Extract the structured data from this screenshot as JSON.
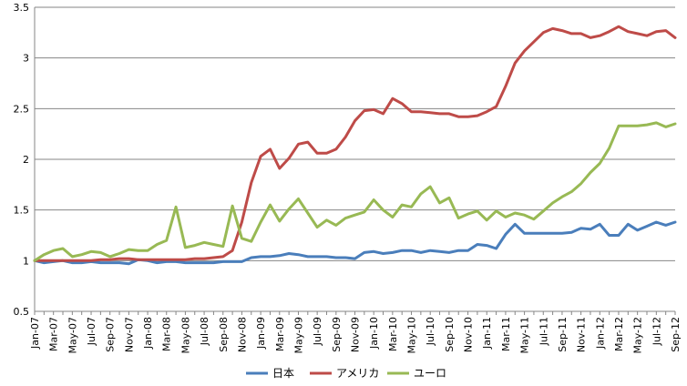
{
  "chart_data": {
    "type": "line",
    "title": "",
    "xlabel": "",
    "ylabel": "",
    "ylim": [
      0.5,
      3.5
    ],
    "y_ticks": [
      "0.5",
      "1",
      "1.5",
      "2",
      "2.5",
      "3",
      "3.5"
    ],
    "grid": "horizontal",
    "legend_position": "bottom",
    "x": [
      "Jan-07",
      "Feb-07",
      "Mar-07",
      "Apr-07",
      "May-07",
      "Jun-07",
      "Jul-07",
      "Aug-07",
      "Sep-07",
      "Oct-07",
      "Nov-07",
      "Dec-07",
      "Jan-08",
      "Feb-08",
      "Mar-08",
      "Apr-08",
      "May-08",
      "Jun-08",
      "Jul-08",
      "Aug-08",
      "Sep-08",
      "Oct-08",
      "Nov-08",
      "Dec-08",
      "Jan-09",
      "Feb-09",
      "Mar-09",
      "Apr-09",
      "May-09",
      "Jun-09",
      "Jul-09",
      "Aug-09",
      "Sep-09",
      "Oct-09",
      "Nov-09",
      "Dec-09",
      "Jan-10",
      "Feb-10",
      "Mar-10",
      "Apr-10",
      "May-10",
      "Jun-10",
      "Jul-10",
      "Aug-10",
      "Sep-10",
      "Oct-10",
      "Nov-10",
      "Dec-10",
      "Jan-11",
      "Feb-11",
      "Mar-11",
      "Apr-11",
      "May-11",
      "Jun-11",
      "Jul-11",
      "Aug-11",
      "Sep-11",
      "Oct-11",
      "Nov-11",
      "Dec-11",
      "Jan-12",
      "Feb-12",
      "Mar-12",
      "Apr-12",
      "May-12",
      "Jun-12",
      "Jul-12",
      "Aug-12",
      "Sep-12"
    ],
    "x_tick_labels": [
      "Jan-07",
      "Mar-07",
      "May-07",
      "Jul-07",
      "Sep-07",
      "Nov-07",
      "Jan-08",
      "Mar-08",
      "May-08",
      "Jul-08",
      "Sep-08",
      "Nov-08",
      "Jan-09",
      "Mar-09",
      "May-09",
      "Jul-09",
      "Sep-09",
      "Nov-09",
      "Jan-10",
      "Mar-10",
      "May-10",
      "Jul-10",
      "Sep-10",
      "Nov-10",
      "Jan-11",
      "Mar-11",
      "May-11",
      "Jul-11",
      "Sep-11",
      "Nov-11",
      "Jan-12",
      "Mar-12",
      "May-12",
      "Jul-12",
      "Sep-12"
    ],
    "series": [
      {
        "name": "日本",
        "color": "#4a7ebb",
        "values": [
          1.0,
          0.98,
          0.99,
          1.0,
          0.98,
          0.98,
          0.99,
          0.98,
          0.98,
          0.98,
          0.97,
          1.01,
          1.0,
          0.98,
          0.99,
          0.99,
          0.98,
          0.98,
          0.98,
          0.98,
          0.99,
          0.99,
          0.99,
          1.03,
          1.04,
          1.04,
          1.05,
          1.07,
          1.06,
          1.04,
          1.04,
          1.04,
          1.03,
          1.03,
          1.02,
          1.08,
          1.09,
          1.07,
          1.08,
          1.1,
          1.1,
          1.08,
          1.1,
          1.09,
          1.08,
          1.1,
          1.1,
          1.16,
          1.15,
          1.12,
          1.26,
          1.36,
          1.27,
          1.27,
          1.27,
          1.27,
          1.27,
          1.28,
          1.32,
          1.31,
          1.36,
          1.25,
          1.25,
          1.36,
          1.3,
          1.34,
          1.38,
          1.35,
          1.38
        ]
      },
      {
        "name": "アメリカ",
        "color": "#be4b48",
        "values": [
          1.0,
          1.0,
          1.0,
          1.0,
          1.0,
          1.0,
          1.0,
          1.01,
          1.01,
          1.02,
          1.02,
          1.01,
          1.01,
          1.01,
          1.01,
          1.01,
          1.01,
          1.02,
          1.02,
          1.03,
          1.04,
          1.1,
          1.38,
          1.77,
          2.03,
          2.1,
          1.91,
          2.01,
          2.15,
          2.17,
          2.06,
          2.06,
          2.1,
          2.22,
          2.38,
          2.48,
          2.49,
          2.45,
          2.6,
          2.55,
          2.47,
          2.47,
          2.46,
          2.45,
          2.45,
          2.42,
          2.42,
          2.43,
          2.47,
          2.52,
          2.72,
          2.95,
          3.07,
          3.16,
          3.25,
          3.29,
          3.27,
          3.24,
          3.24,
          3.2,
          3.22,
          3.26,
          3.31,
          3.26,
          3.24,
          3.22,
          3.26,
          3.27,
          3.2
        ]
      },
      {
        "name": "ユーロ",
        "color": "#98b954",
        "values": [
          1.0,
          1.06,
          1.1,
          1.12,
          1.04,
          1.06,
          1.09,
          1.08,
          1.04,
          1.07,
          1.11,
          1.1,
          1.1,
          1.16,
          1.2,
          1.53,
          1.13,
          1.15,
          1.18,
          1.16,
          1.14,
          1.54,
          1.22,
          1.19,
          1.38,
          1.55,
          1.39,
          1.51,
          1.61,
          1.47,
          1.33,
          1.4,
          1.35,
          1.42,
          1.45,
          1.48,
          1.6,
          1.5,
          1.43,
          1.55,
          1.53,
          1.66,
          1.73,
          1.57,
          1.62,
          1.42,
          1.46,
          1.49,
          1.4,
          1.49,
          1.43,
          1.47,
          1.45,
          1.41,
          1.49,
          1.57,
          1.63,
          1.68,
          1.76,
          1.87,
          1.96,
          2.11,
          2.33,
          2.33,
          2.33,
          2.34,
          2.36,
          2.32,
          2.35
        ]
      }
    ]
  }
}
